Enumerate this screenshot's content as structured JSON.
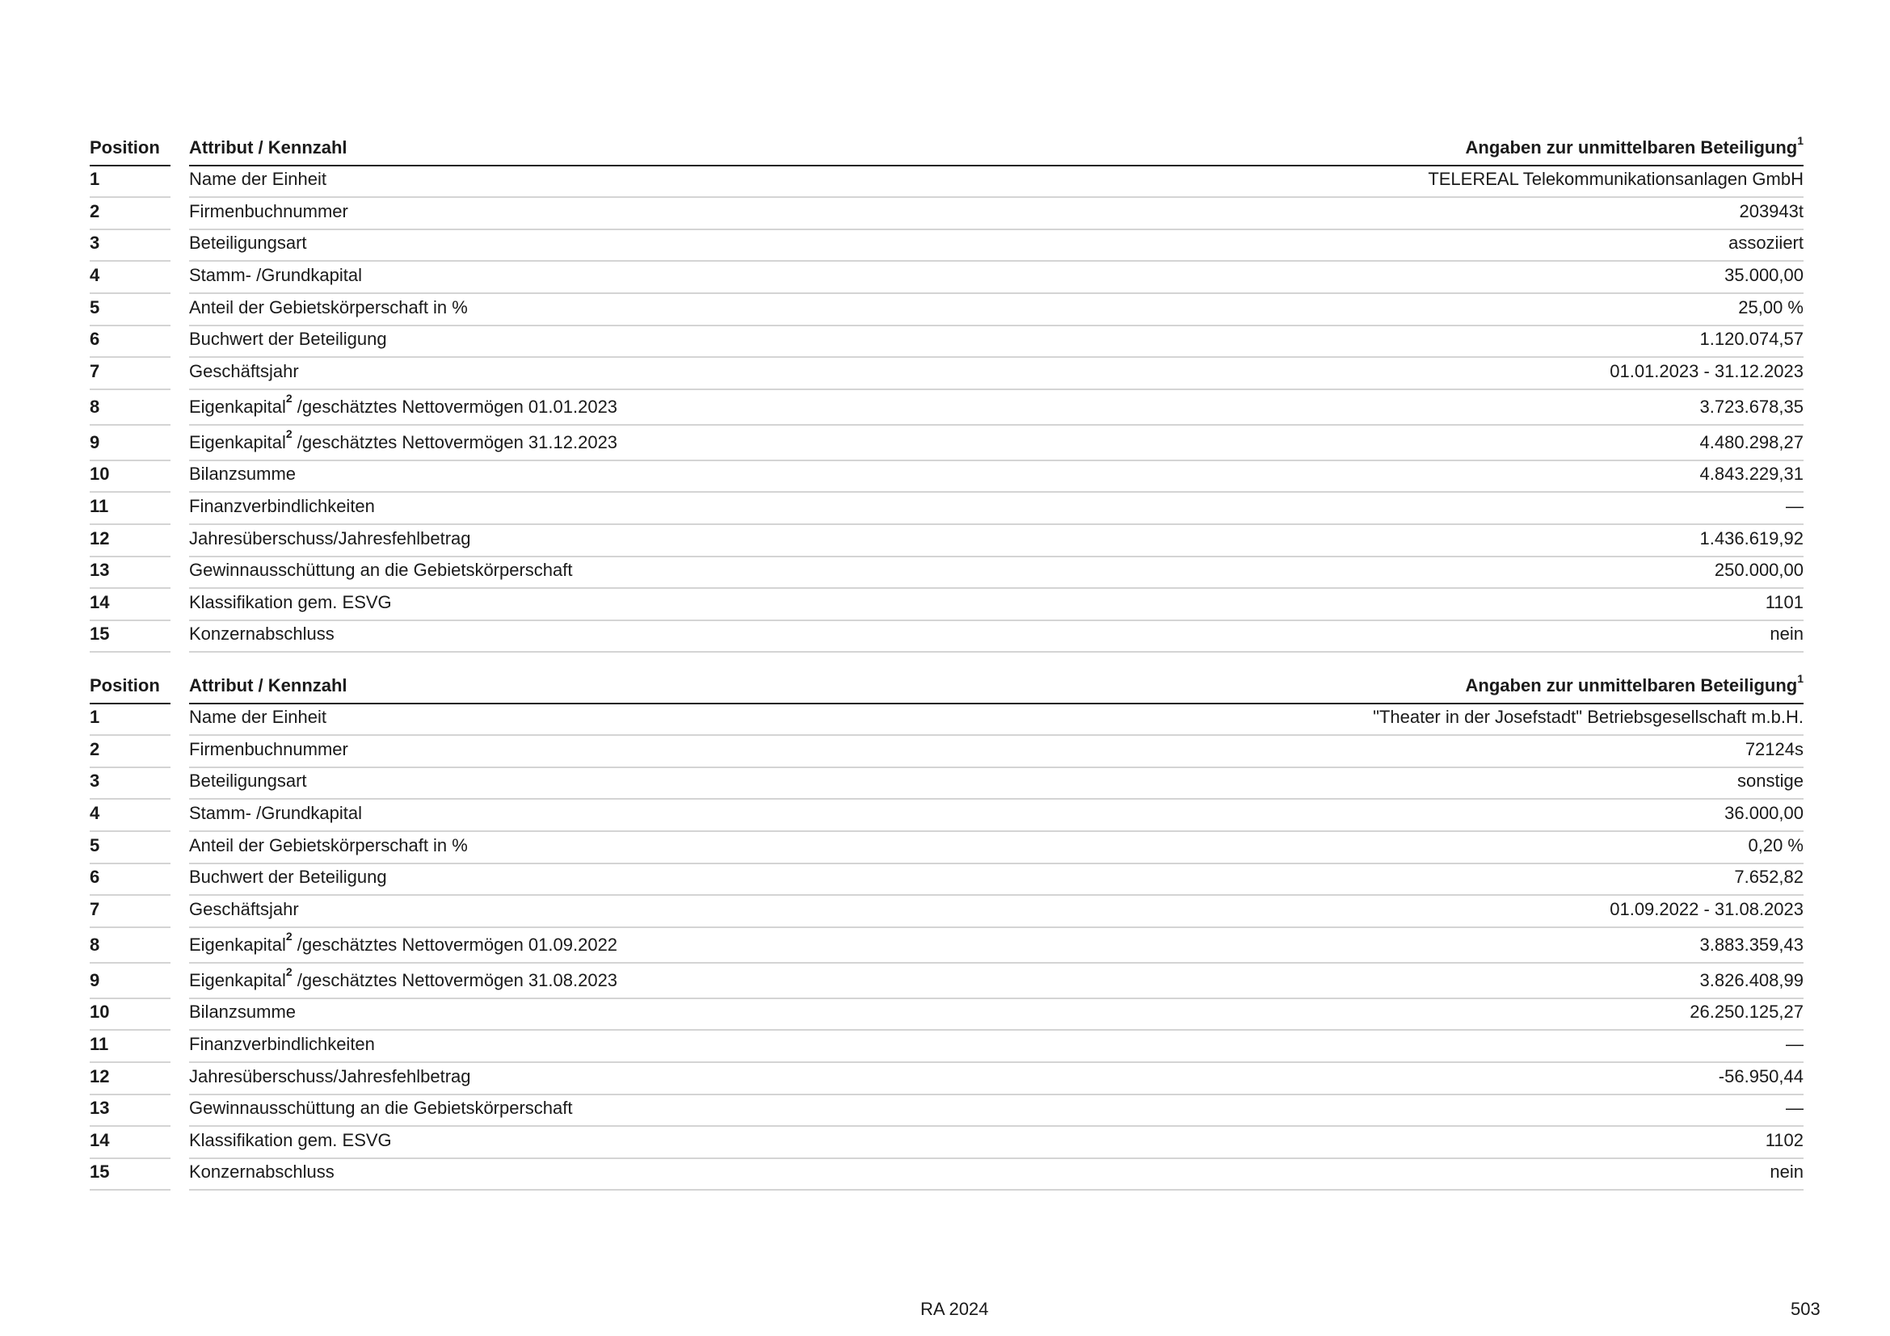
{
  "tables": [
    {
      "header": {
        "position": "Position",
        "attribute": "Attribut / Kennzahl",
        "value": "Angaben zur unmittelbaren Beteiligung",
        "value_footnote": "1"
      },
      "rows": [
        {
          "pos": "1",
          "attr": "Name der Einheit",
          "value": "TELEREAL Telekommunikationsanlagen GmbH"
        },
        {
          "pos": "2",
          "attr": "Firmenbuchnummer",
          "value": "203943t"
        },
        {
          "pos": "3",
          "attr": "Beteiligungsart",
          "value": "assoziiert"
        },
        {
          "pos": "4",
          "attr": "Stamm- /Grundkapital",
          "value": "35.000,00"
        },
        {
          "pos": "5",
          "attr": "Anteil der Gebietskörperschaft in %",
          "value": "25,00 %"
        },
        {
          "pos": "6",
          "attr": "Buchwert der Beteiligung",
          "value": "1.120.074,57"
        },
        {
          "pos": "7",
          "attr": "Geschäftsjahr",
          "value": "01.01.2023 - 31.12.2023"
        },
        {
          "pos": "8",
          "attr": "Eigenkapital",
          "attr_footnote": "2",
          "attr_suffix": " /geschätztes Nettovermögen 01.01.2023",
          "value": "3.723.678,35"
        },
        {
          "pos": "9",
          "attr": "Eigenkapital",
          "attr_footnote": "2",
          "attr_suffix": " /geschätztes Nettovermögen 31.12.2023",
          "value": "4.480.298,27"
        },
        {
          "pos": "10",
          "attr": "Bilanzsumme",
          "value": "4.843.229,31"
        },
        {
          "pos": "11",
          "attr": "Finanzverbindlichkeiten",
          "value": "—"
        },
        {
          "pos": "12",
          "attr": "Jahresüberschuss/Jahresfehlbetrag",
          "value": "1.436.619,92"
        },
        {
          "pos": "13",
          "attr": "Gewinnausschüttung an die Gebietskörperschaft",
          "value": "250.000,00"
        },
        {
          "pos": "14",
          "attr": "Klassifikation gem. ESVG",
          "value": "1101"
        },
        {
          "pos": "15",
          "attr": "Konzernabschluss",
          "value": "nein"
        }
      ]
    },
    {
      "header": {
        "position": "Position",
        "attribute": "Attribut / Kennzahl",
        "value": "Angaben zur unmittelbaren Beteiligung",
        "value_footnote": "1"
      },
      "rows": [
        {
          "pos": "1",
          "attr": "Name der Einheit",
          "value": "\"Theater in der Josefstadt\" Betriebsgesellschaft m.b.H."
        },
        {
          "pos": "2",
          "attr": "Firmenbuchnummer",
          "value": "72124s"
        },
        {
          "pos": "3",
          "attr": "Beteiligungsart",
          "value": "sonstige"
        },
        {
          "pos": "4",
          "attr": "Stamm- /Grundkapital",
          "value": "36.000,00"
        },
        {
          "pos": "5",
          "attr": "Anteil der Gebietskörperschaft in %",
          "value": "0,20 %"
        },
        {
          "pos": "6",
          "attr": "Buchwert der Beteiligung",
          "value": "7.652,82"
        },
        {
          "pos": "7",
          "attr": "Geschäftsjahr",
          "value": "01.09.2022 - 31.08.2023"
        },
        {
          "pos": "8",
          "attr": "Eigenkapital",
          "attr_footnote": "2",
          "attr_suffix": " /geschätztes Nettovermögen 01.09.2022",
          "value": "3.883.359,43"
        },
        {
          "pos": "9",
          "attr": "Eigenkapital",
          "attr_footnote": "2",
          "attr_suffix": " /geschätztes Nettovermögen 31.08.2023",
          "value": "3.826.408,99"
        },
        {
          "pos": "10",
          "attr": "Bilanzsumme",
          "value": "26.250.125,27"
        },
        {
          "pos": "11",
          "attr": "Finanzverbindlichkeiten",
          "value": "—"
        },
        {
          "pos": "12",
          "attr": "Jahresüberschuss/Jahresfehlbetrag",
          "value": "-56.950,44"
        },
        {
          "pos": "13",
          "attr": "Gewinnausschüttung an die Gebietskörperschaft",
          "value": "—"
        },
        {
          "pos": "14",
          "attr": "Klassifikation gem. ESVG",
          "value": "1102"
        },
        {
          "pos": "15",
          "attr": "Konzernabschluss",
          "value": "nein"
        }
      ]
    }
  ],
  "footer": {
    "report": "RA 2024",
    "page_number": "503"
  }
}
